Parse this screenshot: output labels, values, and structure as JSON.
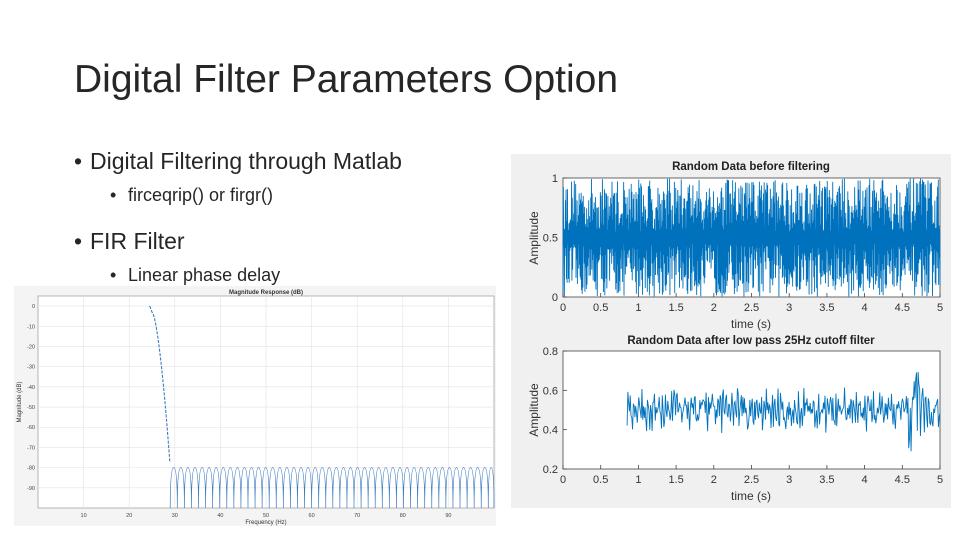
{
  "slide": {
    "title": "Digital Filter Parameters Option",
    "bullets": [
      {
        "text": "Digital Filtering through Matlab",
        "sub": "firceqrip() or firgr()"
      },
      {
        "text": "FIR Filter",
        "sub": "Linear phase delay"
      }
    ]
  },
  "chart_data": [
    {
      "type": "line",
      "title": "Magnitude Response (dB)",
      "xlabel": "Frequency (Hz)",
      "ylabel": "Magnitude (dB)",
      "xlim": [
        0,
        100
      ],
      "ylim": [
        -100,
        5
      ],
      "xticks": [
        "10",
        "20",
        "30",
        "40",
        "50",
        "60",
        "70",
        "80",
        "90"
      ],
      "yticks": [
        "0",
        "-10",
        "-20",
        "-30",
        "-40",
        "-50",
        "-60",
        "-70",
        "-80",
        "-90"
      ],
      "grid": true,
      "passband_edge_hz": 25,
      "stopband_edge_hz": 29,
      "stopband_level_db": -80,
      "color": "#3b7bbf"
    },
    {
      "type": "line",
      "title": "Random Data before filtering",
      "xlabel": "time (s)",
      "ylabel": "Amplitude",
      "xlim": [
        0,
        5
      ],
      "ylim": [
        0,
        1
      ],
      "xticks": [
        "0",
        "0.5",
        "1",
        "1.5",
        "2",
        "2.5",
        "3",
        "3.5",
        "4",
        "4.5",
        "5"
      ],
      "yticks": [
        "0",
        "0.5",
        "1"
      ],
      "grid": false,
      "color": "#0072bd"
    },
    {
      "type": "line",
      "title": "Random Data after low pass 25Hz cutoff filter",
      "xlabel": "time (s)",
      "ylabel": "Amplitude",
      "xlim": [
        0,
        5
      ],
      "ylim": [
        0.2,
        0.8
      ],
      "xticks": [
        "0",
        "0.5",
        "1",
        "1.5",
        "2",
        "2.5",
        "3",
        "3.5",
        "4",
        "4.5",
        "5"
      ],
      "yticks": [
        "0.2",
        "0.4",
        "0.6",
        "0.8"
      ],
      "grid": false,
      "signal_start_s": 0.85,
      "signal_mean": 0.5,
      "color": "#0072bd"
    }
  ]
}
